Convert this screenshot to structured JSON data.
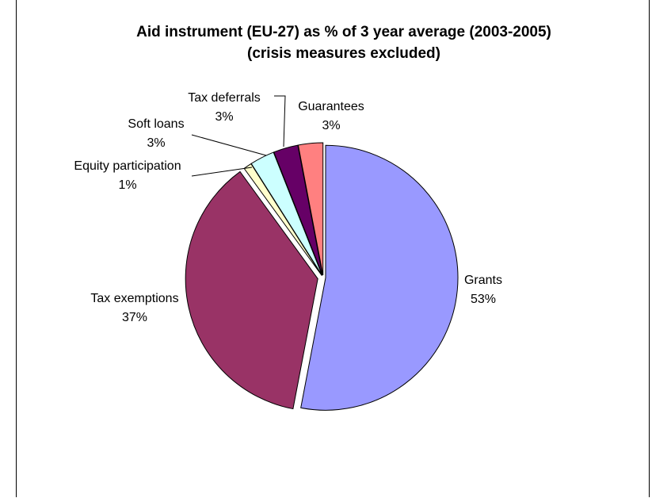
{
  "chart_data": {
    "type": "pie",
    "title_line1": "Aid instrument (EU-27) as % of 3 year average (2003-2005)",
    "title_line2": "(crisis measures excluded)",
    "slices": [
      {
        "name": "Grants",
        "value": 53,
        "label": "53%",
        "color": "#9999FF"
      },
      {
        "name": "Tax exemptions",
        "value": 37,
        "label": "37%",
        "color": "#993366"
      },
      {
        "name": "Equity participation",
        "value": 1,
        "label": "1%",
        "color": "#FFFFCC"
      },
      {
        "name": "Soft loans",
        "value": 3,
        "label": "3%",
        "color": "#CCFFFF"
      },
      {
        "name": "Tax deferrals",
        "value": 3,
        "label": "3%",
        "color": "#660066"
      },
      {
        "name": "Guarantees",
        "value": 3,
        "label": "3%",
        "color": "#FF8080"
      }
    ],
    "legend": "none"
  }
}
